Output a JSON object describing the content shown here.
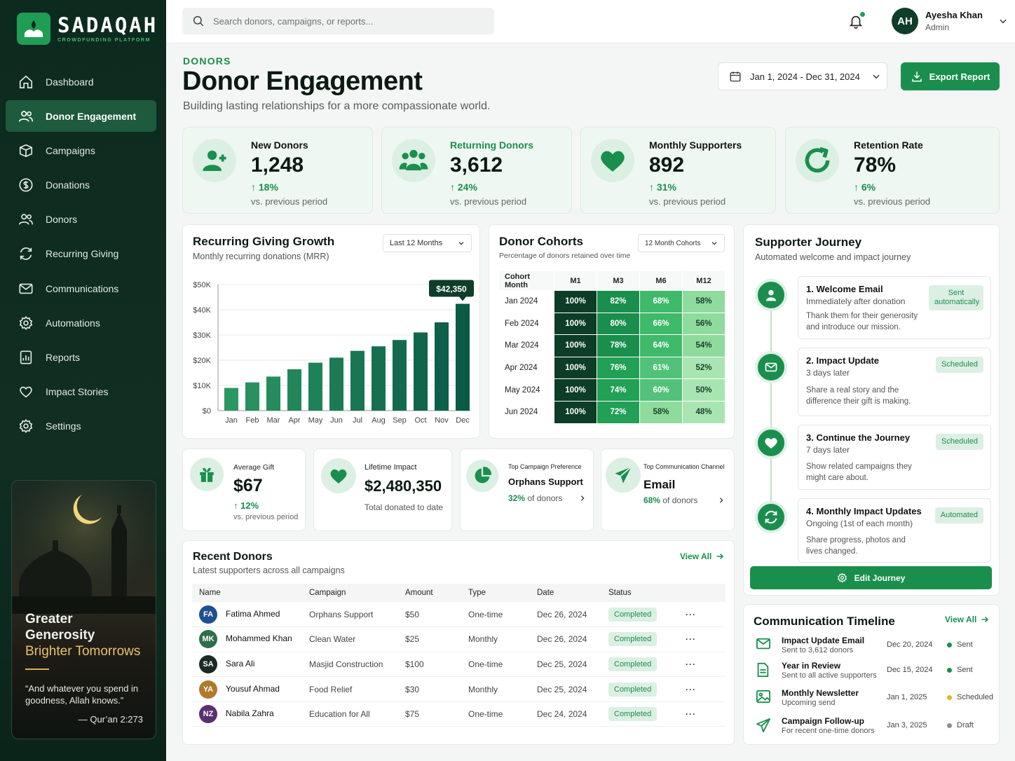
{
  "app": {
    "logo_name": "SADAQAH",
    "logo_tagline": "CROWDFUNDING PLATFORM"
  },
  "sidebar": {
    "items": [
      {
        "label": "Dashboard",
        "icon": "home-icon"
      },
      {
        "label": "Donor Engagement",
        "icon": "users-icon",
        "active": true
      },
      {
        "label": "Campaigns",
        "icon": "box-icon"
      },
      {
        "label": "Donations",
        "icon": "dollar-icon"
      },
      {
        "label": "Donors",
        "icon": "users-icon"
      },
      {
        "label": "Recurring Giving",
        "icon": "refresh-icon"
      },
      {
        "label": "Communications",
        "icon": "mail-icon"
      },
      {
        "label": "Automations",
        "icon": "gear-icon"
      },
      {
        "label": "Reports",
        "icon": "report-icon"
      },
      {
        "label": "Impact Stories",
        "icon": "heart-icon"
      },
      {
        "label": "Settings",
        "icon": "gear-icon"
      }
    ],
    "promo": {
      "title_line1": "Greater",
      "title_line2": "Generosity",
      "title_line3": "Brighter Tomorrows",
      "quote": "“And whatever you spend in goodness, Allah knows.”",
      "reference": "— Qur’an 2:273"
    }
  },
  "topbar": {
    "search_placeholder": "Search donors, campaigns, or reports...",
    "user": {
      "initials": "AH",
      "name": "Ayesha Khan",
      "role": "Admin"
    }
  },
  "header": {
    "kicker": "DONORS",
    "title": "Donor Engagement",
    "subtitle": "Building lasting relationships for a more compassionate world.",
    "date_range": "Jan 1, 2024 - Dec 31, 2024",
    "export_label": "Export Report"
  },
  "stats": [
    {
      "label": "New Donors",
      "value": "1,248",
      "delta": "18%",
      "vs": "vs. previous period",
      "icon": "user-plus-icon"
    },
    {
      "label": "Returning Donors",
      "value": "3,612",
      "delta": "24%",
      "vs": "vs. previous period",
      "icon": "users-group-icon"
    },
    {
      "label": "Monthly Supporters",
      "value": "892",
      "delta": "31%",
      "vs": "vs. previous period",
      "icon": "heart-icon"
    },
    {
      "label": "Retention Rate",
      "value": "78%",
      "delta": "6%",
      "vs": "vs. previous period",
      "icon": "refresh-icon"
    }
  ],
  "recurring": {
    "title": "Recurring Giving Growth",
    "subtitle": "Monthly recurring donations (MRR)",
    "range_select": "Last 12 Months",
    "callout": "$42,350"
  },
  "chart_data": {
    "type": "bar",
    "categories": [
      "Jan",
      "Feb",
      "Mar",
      "Apr",
      "May",
      "Jun",
      "Jul",
      "Aug",
      "Sep",
      "Oct",
      "Nov",
      "Dec"
    ],
    "values": [
      9000,
      11200,
      13500,
      16400,
      19000,
      21000,
      23700,
      25500,
      28000,
      31000,
      35000,
      42350
    ],
    "ylim": [
      0,
      50000
    ],
    "yticks": [
      "$0",
      "$10K",
      "$20K",
      "$30K",
      "$40K",
      "$50K"
    ],
    "grid": true
  },
  "cohorts": {
    "title": "Donor Cohorts",
    "subtitle": "Percentage of donors retained over time",
    "select": "12 Month Cohorts",
    "columns": [
      "Cohort Month",
      "M1",
      "M3",
      "M6",
      "M12"
    ],
    "rows": [
      {
        "month": "Jan 2024",
        "values": [
          100,
          82,
          68,
          58
        ]
      },
      {
        "month": "Feb 2024",
        "values": [
          100,
          80,
          66,
          56
        ]
      },
      {
        "month": "Mar 2024",
        "values": [
          100,
          78,
          64,
          54
        ]
      },
      {
        "month": "Apr 2024",
        "values": [
          100,
          76,
          61,
          52
        ]
      },
      {
        "month": "May 2024",
        "values": [
          100,
          74,
          60,
          50
        ]
      },
      {
        "month": "Jun 2024",
        "values": [
          100,
          72,
          58,
          48
        ]
      }
    ]
  },
  "journey": {
    "title": "Supporter Journey",
    "subtitle": "Automated welcome and impact journey",
    "steps": [
      {
        "title": "1. Welcome Email",
        "time": "Immediately after donation",
        "desc": "Thank them for their generosity and introduce our mission.",
        "badge": "Sent automatically",
        "icon": "user-icon"
      },
      {
        "title": "2. Impact Update",
        "time": "3 days later",
        "desc": "Share a real story and the difference their gift is making.",
        "badge": "Scheduled",
        "icon": "mail-icon"
      },
      {
        "title": "3. Continue the Journey",
        "time": "7 days later",
        "desc": "Show related campaigns they might care about.",
        "badge": "Scheduled",
        "icon": "heart-icon"
      },
      {
        "title": "4. Monthly Impact Updates",
        "time": "Ongoing (1st of each month)",
        "desc": "Share progress, photos and lives changed.",
        "badge": "Automated",
        "icon": "refresh-icon"
      }
    ],
    "edit_label": "Edit Journey"
  },
  "mini_stats": {
    "avg_gift": {
      "label": "Average Gift",
      "value": "$67",
      "delta": "12%",
      "vs": "vs. previous period"
    },
    "lifetime": {
      "label": "Lifetime Impact",
      "value": "$2,480,350",
      "sub": "Total donated to date"
    },
    "top_campaign": {
      "label": "Top Campaign Preference",
      "value": "Orphans Support",
      "pct": "32%",
      "pct_suffix": "of donors"
    },
    "top_channel": {
      "label": "Top Communication Channel",
      "value": "Email",
      "pct": "68%",
      "pct_suffix": "of donors"
    }
  },
  "recent_donors": {
    "title": "Recent Donors",
    "subtitle": "Latest supporters across all campaigns",
    "view_all": "View All",
    "columns": [
      "Name",
      "Campaign",
      "Amount",
      "Type",
      "Date",
      "Status"
    ],
    "rows": [
      {
        "initials": "FA",
        "color": "#1e4f8f",
        "name": "Fatima Ahmed",
        "campaign": "Orphans Support",
        "amount": "$50",
        "type": "One-time",
        "date": "Dec 26, 2024",
        "status": "Completed"
      },
      {
        "initials": "MK",
        "color": "#2f6e4a",
        "name": "Mohammed Khan",
        "campaign": "Clean Water",
        "amount": "$25",
        "type": "Monthly",
        "date": "Dec 26, 2024",
        "status": "Completed"
      },
      {
        "initials": "SA",
        "color": "#1c2a24",
        "name": "Sara Ali",
        "campaign": "Masjid Construction",
        "amount": "$100",
        "type": "One-time",
        "date": "Dec 25, 2024",
        "status": "Completed"
      },
      {
        "initials": "YA",
        "color": "#b07a2a",
        "name": "Yousuf Ahmad",
        "campaign": "Food Relief",
        "amount": "$30",
        "type": "Monthly",
        "date": "Dec 25, 2024",
        "status": "Completed"
      },
      {
        "initials": "NZ",
        "color": "#5a2f6e",
        "name": "Nabila Zahra",
        "campaign": "Education for All",
        "amount": "$75",
        "type": "One-time",
        "date": "Dec 24, 2024",
        "status": "Completed"
      }
    ]
  },
  "timeline": {
    "title": "Communication Timeline",
    "view_all": "View All",
    "items": [
      {
        "title": "Impact Update Email",
        "sub": "Sent to 3,612 donors",
        "date": "Dec 20, 2024",
        "status": "Sent",
        "status_color": "#1a8f4d",
        "icon": "mail-icon"
      },
      {
        "title": "Year in Review",
        "sub": "Sent to all active supporters",
        "date": "Dec 15, 2024",
        "status": "Sent",
        "status_color": "#1a8f4d",
        "icon": "document-icon"
      },
      {
        "title": "Monthly Newsletter",
        "sub": "Upcoming send",
        "date": "Jan 1, 2025",
        "status": "Scheduled",
        "status_color": "#e5b423",
        "icon": "image-icon"
      },
      {
        "title": "Campaign Follow-up",
        "sub": "For recent one-time donors",
        "date": "Jan 3, 2025",
        "status": "Draft",
        "status_color": "#8a918d",
        "icon": "send-icon"
      }
    ]
  },
  "colors": {
    "accent": "#1a8f4d",
    "sidebar": "#0d2a1f",
    "active_nav": "#1e5a3c"
  }
}
